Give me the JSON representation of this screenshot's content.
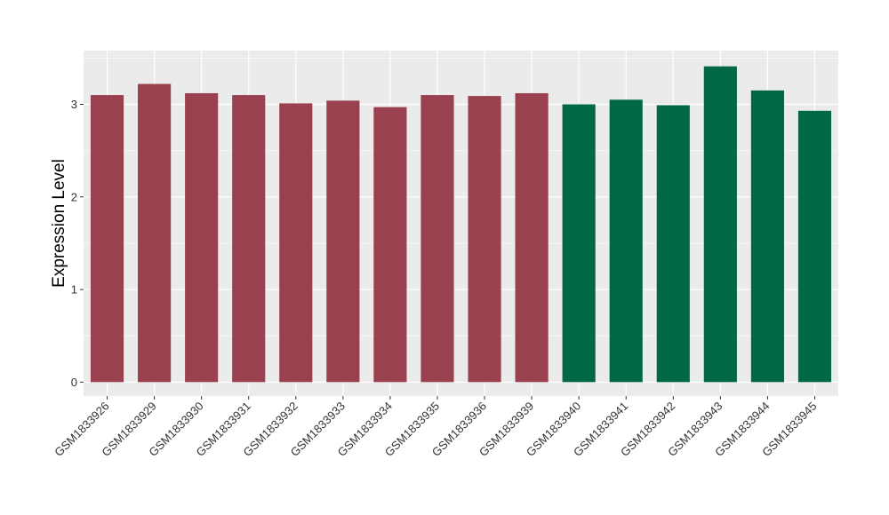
{
  "chart_data": {
    "type": "bar",
    "title": "",
    "xlabel": "",
    "ylabel": "Expression Level",
    "categories": [
      "GSM1833926",
      "GSM1833929",
      "GSM1833930",
      "GSM1833931",
      "GSM1833932",
      "GSM1833933",
      "GSM1833934",
      "GSM1833935",
      "GSM1833936",
      "GSM1833939",
      "GSM1833940",
      "GSM1833941",
      "GSM1833942",
      "GSM1833943",
      "GSM1833944",
      "GSM1833945"
    ],
    "values": [
      3.1,
      3.22,
      3.12,
      3.1,
      3.01,
      3.04,
      2.97,
      3.1,
      3.09,
      3.12,
      3.0,
      3.05,
      2.99,
      3.41,
      3.15,
      2.93
    ],
    "groups": [
      "a",
      "a",
      "a",
      "a",
      "a",
      "a",
      "a",
      "a",
      "a",
      "a",
      "b",
      "b",
      "b",
      "b",
      "b",
      "b"
    ],
    "group_colors": {
      "a": "#9a414f",
      "b": "#016844"
    },
    "ylim": [
      -0.15,
      3.58
    ],
    "yticks": [
      0,
      1,
      2,
      3
    ],
    "ytick_labels": [
      "0",
      "1",
      "2",
      "3"
    ],
    "grid": true,
    "panel_background": "#ebebeb",
    "grid_color": "#ffffff",
    "legend": "none"
  }
}
